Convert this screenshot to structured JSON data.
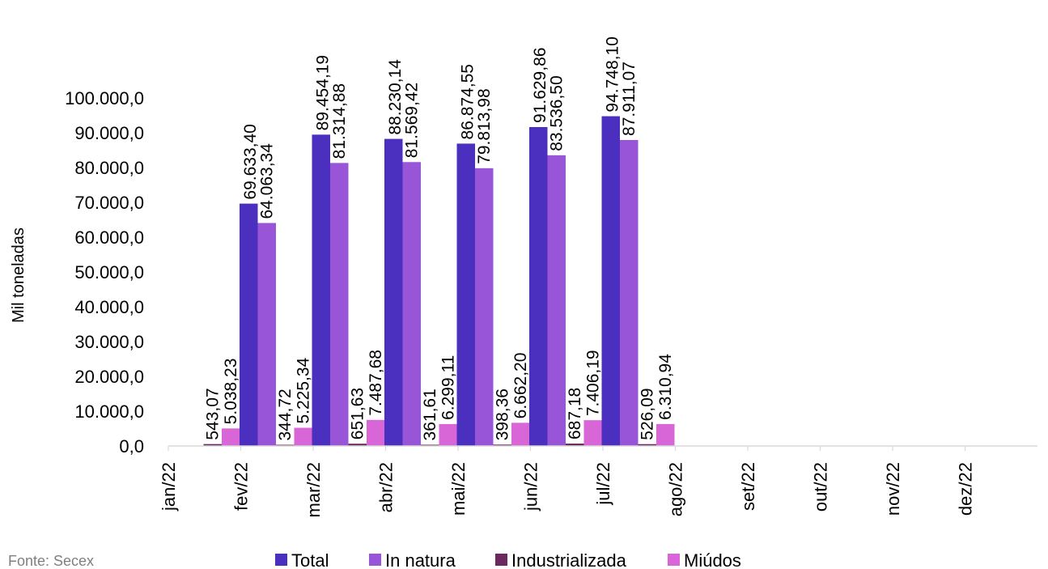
{
  "chart_data": {
    "type": "bar",
    "ylabel": "Mil toneladas",
    "xlabel": "",
    "ylim": [
      0,
      100000
    ],
    "yticks": [
      "0,0",
      "10.000,0",
      "20.000,0",
      "30.000,0",
      "40.000,0",
      "50.000,0",
      "60.000,0",
      "70.000,0",
      "80.000,0",
      "90.000,0",
      "100.000,0"
    ],
    "categories": [
      "jan/22",
      "fev/22",
      "mar/22",
      "abr/22",
      "mai/22",
      "jun/22",
      "jul/22",
      "ago/22",
      "set/22",
      "out/22",
      "nov/22",
      "dez/22"
    ],
    "series": [
      {
        "name": "Total",
        "color": "#4b2fbf",
        "values": [
          null,
          69633.4,
          89454.19,
          88230.14,
          86874.55,
          91629.86,
          94748.1,
          null,
          null,
          null,
          null,
          null
        ],
        "labels": [
          "",
          "69.633,40",
          "89.454,19",
          "88.230,14",
          "86.874,55",
          "91.629,86",
          "94.748,10",
          "",
          "",
          "",
          "",
          ""
        ]
      },
      {
        "name": "In natura",
        "color": "#9955d8",
        "values": [
          null,
          64063.34,
          81314.88,
          81569.42,
          79813.98,
          83536.5,
          87911.07,
          null,
          null,
          null,
          null,
          null
        ],
        "labels": [
          "",
          "64.063,34",
          "81.314,88",
          "81.569,42",
          "79.813,98",
          "83.536,50",
          "87.911,07",
          "",
          "",
          "",
          "",
          ""
        ]
      },
      {
        "name": "Industrializada",
        "color": "#6b2a5e",
        "values": [
          543.07,
          344.72,
          651.63,
          361.61,
          398.36,
          687.18,
          526.09,
          null,
          null,
          null,
          null,
          null
        ],
        "labels": [
          "543,07",
          "344,72",
          "651,63",
          "361,61",
          "398,36",
          "687,18",
          "526,09",
          "",
          "",
          "",
          "",
          ""
        ]
      },
      {
        "name": "Miúdos",
        "color": "#d966d6",
        "values": [
          5038.23,
          5225.34,
          7487.68,
          6299.11,
          6662.2,
          7406.19,
          6310.94,
          null,
          null,
          null,
          null,
          null
        ],
        "labels": [
          "5.038,23",
          "5.225,34",
          "7.487,68",
          "6.299,11",
          "6.662,20",
          "7.406,19",
          "6.310,94",
          "",
          "",
          "",
          "",
          ""
        ]
      }
    ],
    "legend": "bottom",
    "grid": false
  },
  "source_text": "Fonte: Secex"
}
